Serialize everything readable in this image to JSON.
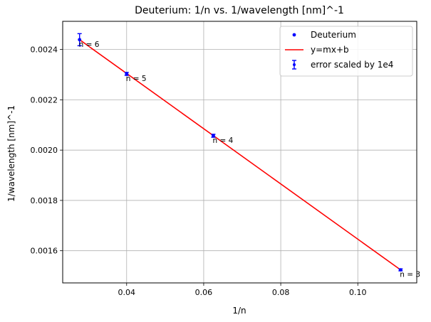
{
  "chart_data": {
    "type": "scatter",
    "title": "Deuterium: 1/n vs. 1/wavelength [nm]^-1",
    "xlabel": "1/n",
    "ylabel": "1/wavelength [nm]^-1",
    "xlim": [
      0.0234,
      0.1153
    ],
    "ylim": [
      0.001472,
      0.002512
    ],
    "grid": true,
    "legend_position": "top-right",
    "x_ticks": [
      {
        "value": 0.04,
        "label": "0.04"
      },
      {
        "value": 0.06,
        "label": "0.06"
      },
      {
        "value": 0.08,
        "label": "0.08"
      },
      {
        "value": 0.1,
        "label": "0.10"
      }
    ],
    "y_ticks": [
      {
        "value": 0.0016,
        "label": "0.0016"
      },
      {
        "value": 0.0018,
        "label": "0.0018"
      },
      {
        "value": 0.002,
        "label": "0.0020"
      },
      {
        "value": 0.0022,
        "label": "0.0022"
      },
      {
        "value": 0.0024,
        "label": "0.0024"
      }
    ],
    "series": [
      {
        "name": "Deuterium",
        "kind": "points",
        "color": "#0000ff",
        "x": [
          0.02778,
          0.04,
          0.0625,
          0.1111
        ],
        "y": [
          0.002439,
          0.002303,
          0.002057,
          0.001524
        ]
      },
      {
        "name": "y=mx+b",
        "kind": "line",
        "color": "#ff0000",
        "x": [
          0.02778,
          0.1111
        ],
        "y": [
          0.002439,
          0.001524
        ]
      },
      {
        "name": "error scaled by 1e4",
        "kind": "errorbar",
        "color": "#0000ff",
        "x": [
          0.02778,
          0.04,
          0.0625,
          0.1111
        ],
        "y": [
          0.002439,
          0.002303,
          0.002057,
          0.001524
        ],
        "yerr": [
          2.4e-05,
          6e-06,
          6e-06,
          4e-06
        ]
      }
    ],
    "annotations": [
      {
        "text": "n = 6",
        "x": 0.02778,
        "y": 0.002439
      },
      {
        "text": "n = 5",
        "x": 0.04,
        "y": 0.002303
      },
      {
        "text": "n = 4",
        "x": 0.0625,
        "y": 0.002057
      },
      {
        "text": "n = 3",
        "x": 0.1111,
        "y": 0.001524
      }
    ]
  }
}
